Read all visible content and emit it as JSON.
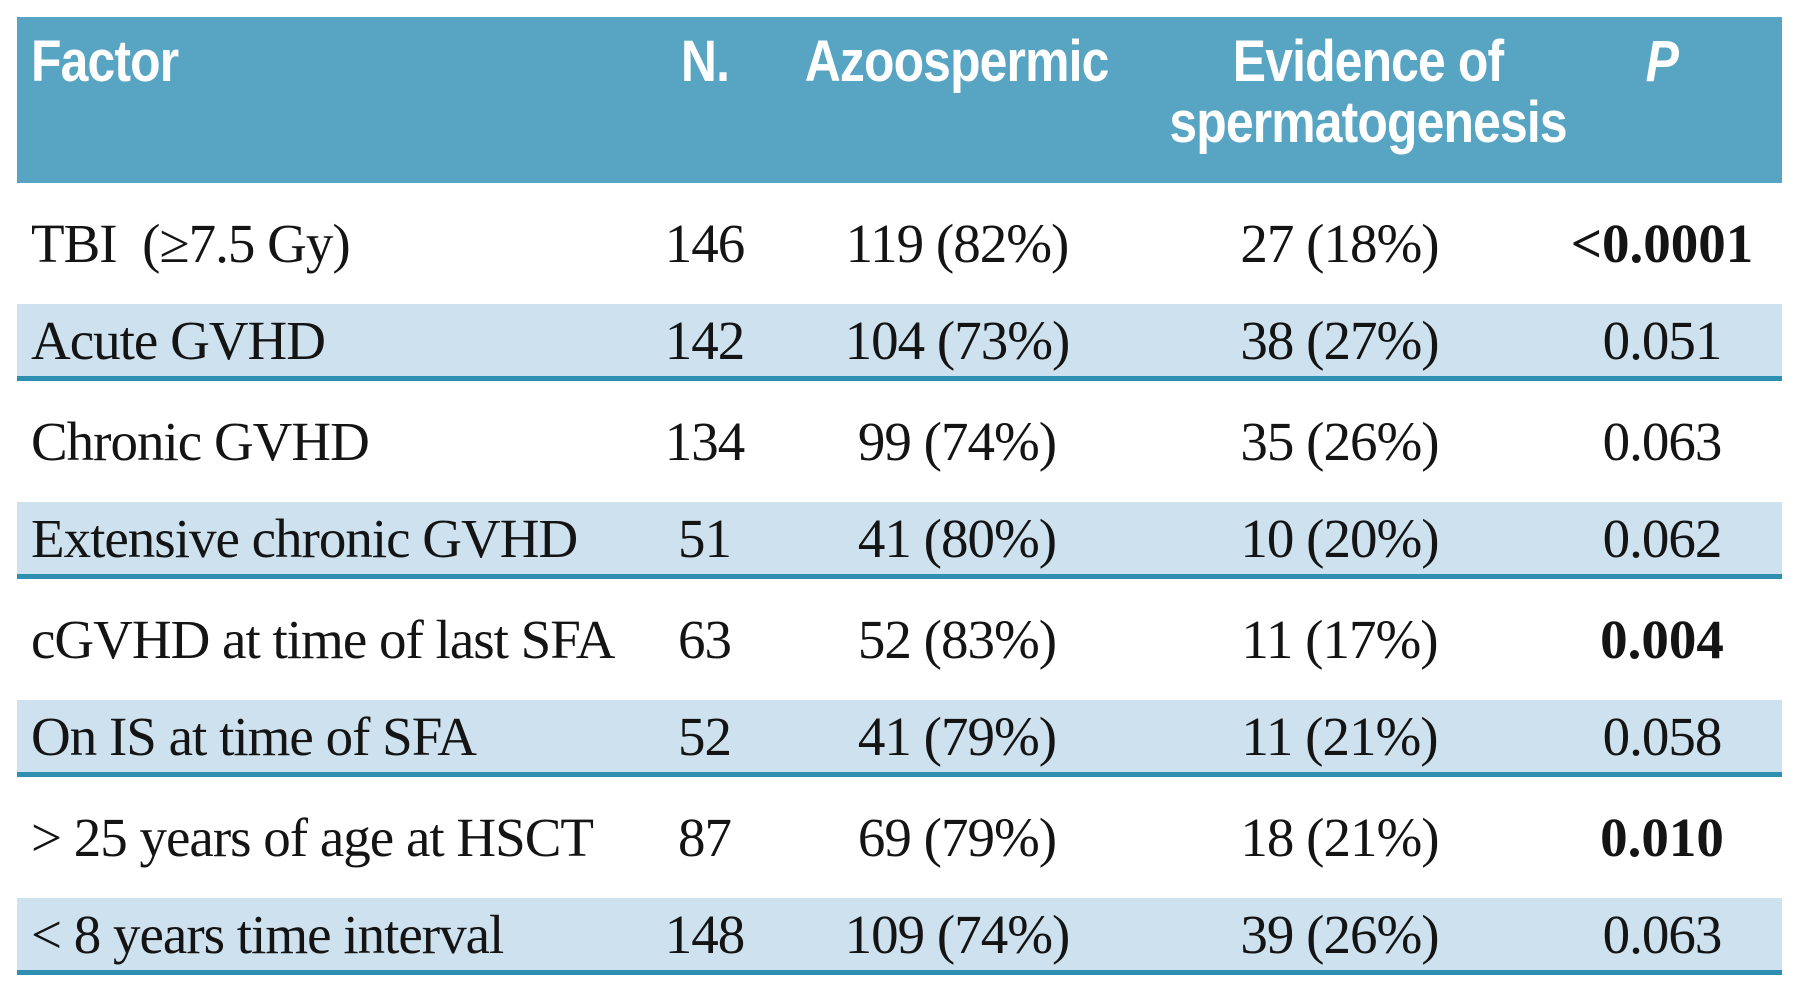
{
  "colors": {
    "header_background": "#58a4c3",
    "shaded_row_background": "#cde1ee",
    "separator_line": "#2e8fb1",
    "header_text": "#ffffff",
    "body_text": "#141414",
    "page_background": "#ffffff"
  },
  "table": {
    "header": {
      "factor": "Factor",
      "n": "N.",
      "azoospermic": "Azoospermic",
      "evidence": "Evidence of\nspermatogenesis",
      "p": "P"
    },
    "rows": [
      {
        "factor": "TBI  (≥7.5 Gy)",
        "n": "146",
        "azoospermic": "119 (82%)",
        "evidence": "27 (18%)",
        "p": "<0.0001",
        "p_significant": true
      },
      {
        "factor": "Acute GVHD",
        "n": "142",
        "azoospermic": "104 (73%)",
        "evidence": "38 (27%)",
        "p": "0.051",
        "p_significant": false
      },
      {
        "factor": "Chronic GVHD",
        "n": "134",
        "azoospermic": "99 (74%)",
        "evidence": "35 (26%)",
        "p": "0.063",
        "p_significant": false
      },
      {
        "factor": "Extensive chronic GVHD",
        "n": "51",
        "azoospermic": "41 (80%)",
        "evidence": "10 (20%)",
        "p": "0.062",
        "p_significant": false
      },
      {
        "factor": "cGVHD at time of last SFA",
        "n": "63",
        "azoospermic": "52 (83%)",
        "evidence": "11 (17%)",
        "p": "0.004",
        "p_significant": true
      },
      {
        "factor": "On IS at time of SFA",
        "n": "52",
        "azoospermic": "41 (79%)",
        "evidence": "11 (21%)",
        "p": "0.058",
        "p_significant": false
      },
      {
        "factor": "> 25 years of age at HSCT",
        "n": "87",
        "azoospermic": "69 (79%)",
        "evidence": "18 (21%)",
        "p": "0.010",
        "p_significant": true
      },
      {
        "factor": "< 8 years time interval",
        "n": "148",
        "azoospermic": "109 (74%)",
        "evidence": "39 (26%)",
        "p": "0.063",
        "p_significant": false
      }
    ]
  }
}
